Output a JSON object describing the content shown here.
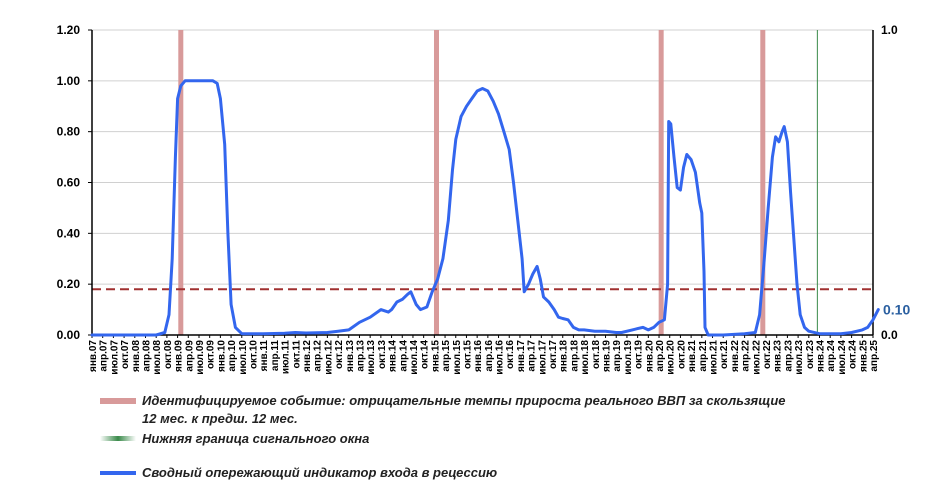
{
  "chart_data": {
    "type": "line",
    "y_axis_left": {
      "ticks": [
        "0.00",
        "0.20",
        "0.40",
        "0.60",
        "0.80",
        "1.00",
        "1.20"
      ],
      "min": 0,
      "max": 1.2
    },
    "y_axis_right": {
      "ticks": [
        "0.0",
        "1.0"
      ]
    },
    "x_ticks": [
      "янв.07",
      "апр.07",
      "июл.07",
      "окт.07",
      "янв.08",
      "апр.08",
      "июл.08",
      "окт.08",
      "янв.09",
      "апр.09",
      "июл.09",
      "окт.09",
      "янв.10",
      "апр.10",
      "июл.10",
      "окт.10",
      "янв.11",
      "апр.11",
      "июл.11",
      "окт.11",
      "янв.12",
      "апр.12",
      "июл.12",
      "окт.12",
      "янв.13",
      "апр.13",
      "июл.13",
      "окт.13",
      "янв.14",
      "апр.14",
      "июл.14",
      "окт.14",
      "янв.15",
      "апр.15",
      "июл.15",
      "окт.15",
      "янв.16",
      "апр.16",
      "июл.16",
      "окт.16",
      "янв.17",
      "апр.17",
      "июл.17",
      "окт.17",
      "янв.18",
      "апр.18",
      "июл.18",
      "окт.18",
      "янв.19",
      "апр.19",
      "июл.19",
      "окт.19",
      "янв.20",
      "апр.20",
      "июл.20",
      "окт.20",
      "янв.21",
      "апр.21",
      "июл.21",
      "окт.21",
      "янв.22",
      "апр.22",
      "июл.22",
      "окт.22",
      "янв.23",
      "апр.23",
      "июл.23",
      "окт.23",
      "янв.24",
      "апр.24",
      "июл.24",
      "окт.24",
      "янв.25",
      "апр.25"
    ],
    "threshold": 0.18,
    "event_bars": [
      8.3,
      32.2,
      53.2,
      62.7
    ],
    "window_line": 67.8,
    "series": [
      {
        "name": "Сводный опережающий индикатор входа в рецессию",
        "points": [
          [
            0,
            0
          ],
          [
            4,
            0
          ],
          [
            6,
            0
          ],
          [
            6.8,
            0.01
          ],
          [
            7.2,
            0.08
          ],
          [
            7.5,
            0.3
          ],
          [
            7.8,
            0.7
          ],
          [
            8.0,
            0.93
          ],
          [
            8.3,
            0.98
          ],
          [
            8.7,
            1.0
          ],
          [
            10,
            1.0
          ],
          [
            11.3,
            1.0
          ],
          [
            11.7,
            0.99
          ],
          [
            12.0,
            0.93
          ],
          [
            12.4,
            0.75
          ],
          [
            12.7,
            0.4
          ],
          [
            13.0,
            0.12
          ],
          [
            13.4,
            0.03
          ],
          [
            14,
            0.005
          ],
          [
            16,
            0.005
          ],
          [
            18,
            0.007
          ],
          [
            19,
            0.01
          ],
          [
            20,
            0.008
          ],
          [
            22,
            0.01
          ],
          [
            23,
            0.015
          ],
          [
            24,
            0.02
          ],
          [
            25,
            0.05
          ],
          [
            26,
            0.07
          ],
          [
            27,
            0.1
          ],
          [
            27.7,
            0.09
          ],
          [
            28,
            0.1
          ],
          [
            28.5,
            0.13
          ],
          [
            29,
            0.14
          ],
          [
            29.5,
            0.16
          ],
          [
            29.8,
            0.17
          ],
          [
            30.3,
            0.12
          ],
          [
            30.7,
            0.1
          ],
          [
            31.3,
            0.11
          ],
          [
            31.8,
            0.17
          ],
          [
            32.3,
            0.22
          ],
          [
            32.8,
            0.3
          ],
          [
            33.3,
            0.45
          ],
          [
            33.7,
            0.65
          ],
          [
            34,
            0.77
          ],
          [
            34.5,
            0.86
          ],
          [
            35,
            0.9
          ],
          [
            35.5,
            0.93
          ],
          [
            36,
            0.96
          ],
          [
            36.5,
            0.97
          ],
          [
            37,
            0.96
          ],
          [
            37.5,
            0.92
          ],
          [
            38,
            0.87
          ],
          [
            38.5,
            0.8
          ],
          [
            39,
            0.73
          ],
          [
            39.4,
            0.6
          ],
          [
            39.8,
            0.45
          ],
          [
            40.2,
            0.3
          ],
          [
            40.4,
            0.17
          ],
          [
            40.8,
            0.2
          ],
          [
            41.2,
            0.24
          ],
          [
            41.6,
            0.27
          ],
          [
            41.9,
            0.22
          ],
          [
            42.2,
            0.15
          ],
          [
            42.7,
            0.13
          ],
          [
            43.2,
            0.1
          ],
          [
            43.6,
            0.07
          ],
          [
            44,
            0.065
          ],
          [
            44.5,
            0.06
          ],
          [
            45,
            0.03
          ],
          [
            45.5,
            0.02
          ],
          [
            46,
            0.02
          ],
          [
            47,
            0.015
          ],
          [
            48,
            0.015
          ],
          [
            49,
            0.01
          ],
          [
            49.5,
            0.01
          ],
          [
            50.5,
            0.02
          ],
          [
            51,
            0.025
          ],
          [
            51.5,
            0.03
          ],
          [
            52,
            0.02
          ],
          [
            52.5,
            0.03
          ],
          [
            53,
            0.05
          ],
          [
            53.5,
            0.06
          ],
          [
            53.8,
            0.2
          ],
          [
            53.9,
            0.84
          ],
          [
            54.1,
            0.83
          ],
          [
            54.4,
            0.7
          ],
          [
            54.7,
            0.58
          ],
          [
            55,
            0.57
          ],
          [
            55.3,
            0.66
          ],
          [
            55.6,
            0.71
          ],
          [
            56,
            0.69
          ],
          [
            56.4,
            0.64
          ],
          [
            56.8,
            0.52
          ],
          [
            57,
            0.48
          ],
          [
            57.2,
            0.25
          ],
          [
            57.3,
            0.03
          ],
          [
            57.6,
            0.0
          ],
          [
            59,
            0.0
          ],
          [
            61,
            0.005
          ],
          [
            62,
            0.01
          ],
          [
            62.4,
            0.08
          ],
          [
            62.8,
            0.28
          ],
          [
            63.2,
            0.5
          ],
          [
            63.6,
            0.7
          ],
          [
            63.9,
            0.78
          ],
          [
            64.2,
            0.76
          ],
          [
            64.5,
            0.8
          ],
          [
            64.7,
            0.82
          ],
          [
            65,
            0.76
          ],
          [
            65.3,
            0.56
          ],
          [
            65.6,
            0.38
          ],
          [
            65.9,
            0.2
          ],
          [
            66.2,
            0.08
          ],
          [
            66.6,
            0.03
          ],
          [
            67,
            0.015
          ],
          [
            68,
            0.005
          ],
          [
            70,
            0.005
          ],
          [
            71,
            0.01
          ],
          [
            72,
            0.02
          ],
          [
            72.5,
            0.03
          ],
          [
            73,
            0.06
          ],
          [
            73.5,
            0.1
          ]
        ],
        "end_label": "0.10"
      }
    ],
    "legend": [
      {
        "label": "Идентифицируемое событие: отрицательные темпы прироста реального ВВП за скользящие",
        "label_line2": "12 мес. к предш. 12 мес."
      },
      {
        "label": "Нижняя граница сигнального окна"
      },
      {
        "label": "Сводный опережающий индикатор входа в рецессию"
      }
    ],
    "colors": {
      "line": "#3366ee",
      "event": "#d89a9a",
      "window": "#3a8a4a",
      "threshold": "#a03030",
      "grid": "#d0d0d0",
      "end_label": "#2a5fa0"
    }
  }
}
